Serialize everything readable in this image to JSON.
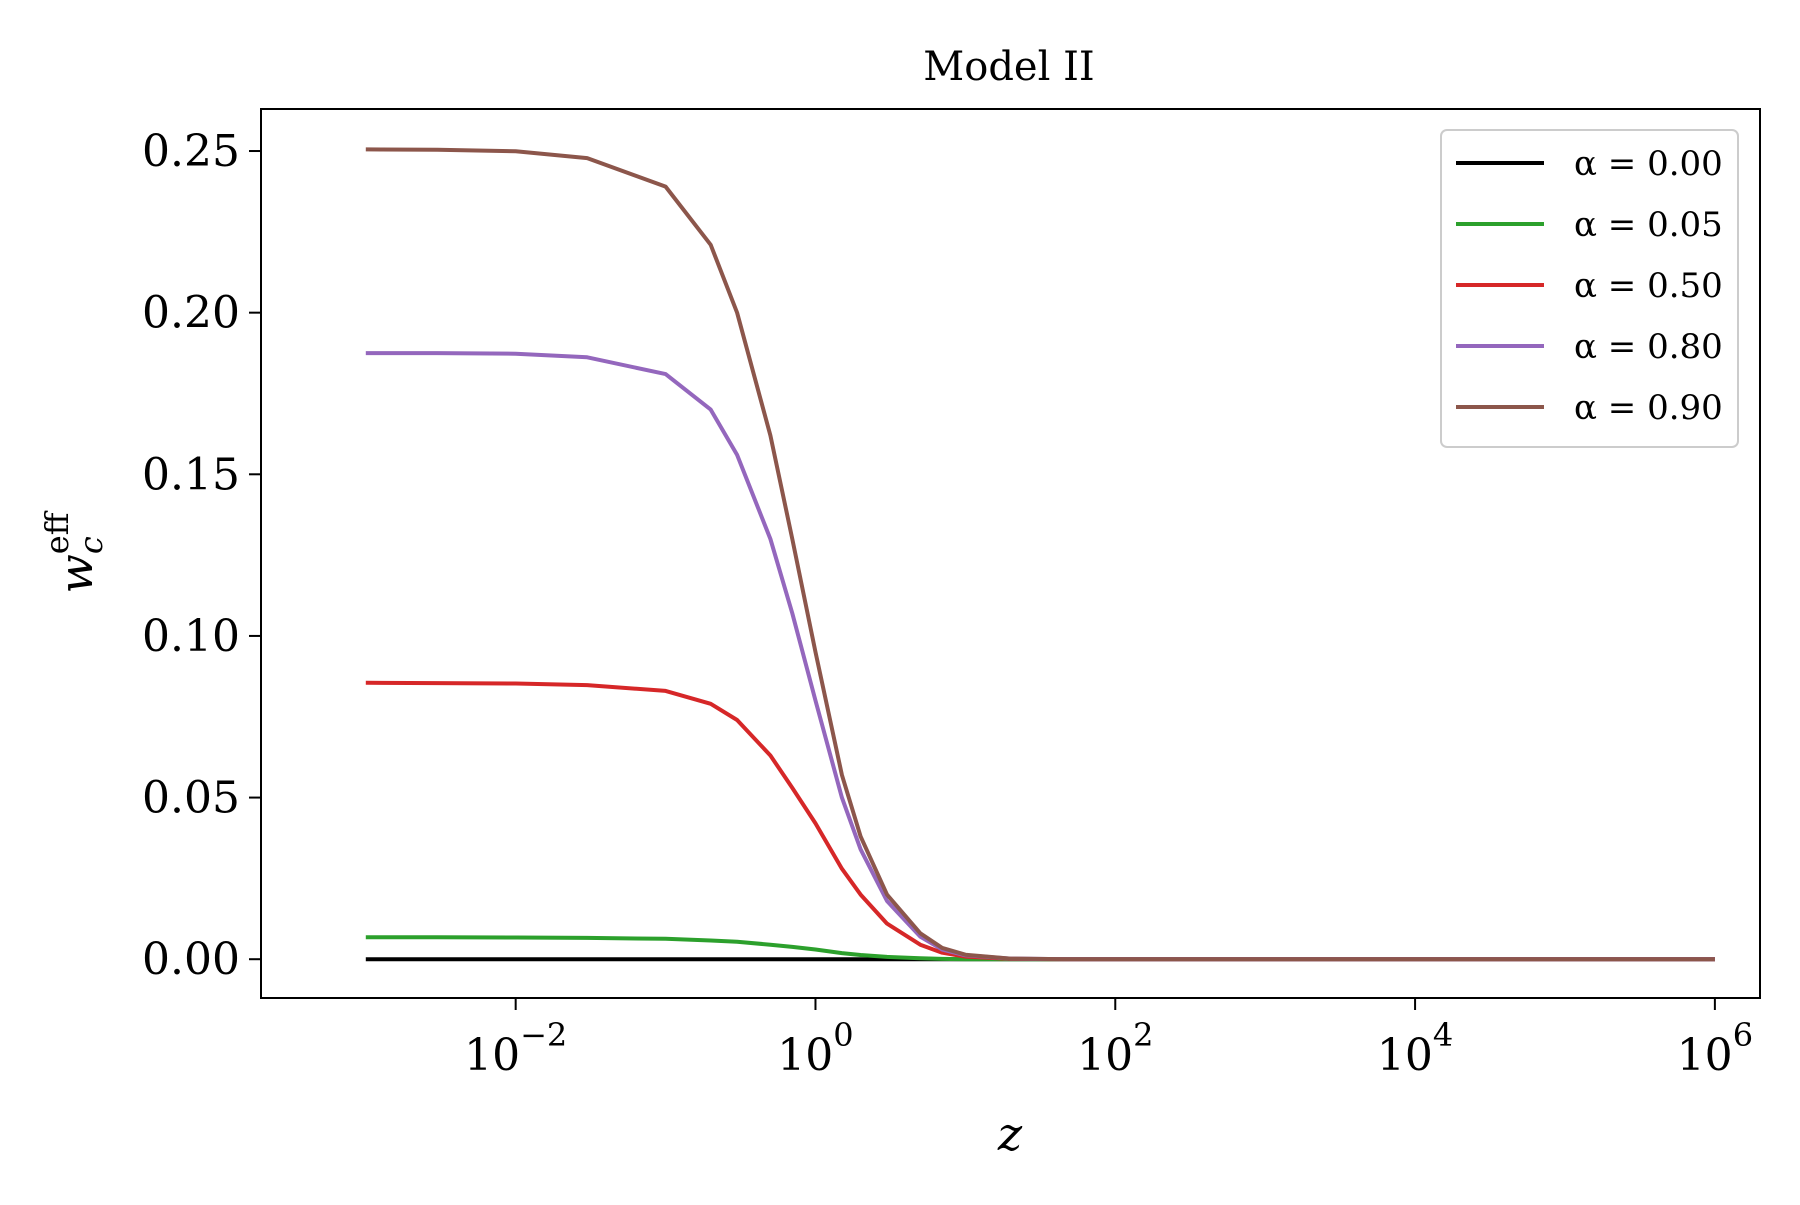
{
  "chart_data": {
    "type": "line",
    "title": "Model II",
    "xlabel": "z",
    "ylabel": {
      "base": "w",
      "sub": "c",
      "sup": "eff"
    },
    "x_scale": "log",
    "xlim": [
      0.0002,
      2000000
    ],
    "ylim": [
      -0.012,
      0.263
    ],
    "x_ticks": [
      {
        "value": 0.01,
        "base": "10",
        "exp": "−2"
      },
      {
        "value": 1,
        "base": "10",
        "exp": "0"
      },
      {
        "value": 100,
        "base": "10",
        "exp": "2"
      },
      {
        "value": 10000,
        "base": "10",
        "exp": "4"
      },
      {
        "value": 1000000,
        "base": "10",
        "exp": "6"
      }
    ],
    "y_ticks": [
      {
        "value": 0.0,
        "label": "0.00"
      },
      {
        "value": 0.05,
        "label": "0.05"
      },
      {
        "value": 0.1,
        "label": "0.10"
      },
      {
        "value": 0.15,
        "label": "0.15"
      },
      {
        "value": 0.2,
        "label": "0.20"
      },
      {
        "value": 0.25,
        "label": "0.25"
      }
    ],
    "grid": false,
    "legend_position": "top-right",
    "x": [
      0.001,
      0.003,
      0.01,
      0.03,
      0.1,
      0.2,
      0.3,
      0.5,
      0.7,
      1,
      1.5,
      2,
      3,
      5,
      7,
      10,
      20,
      50,
      100,
      1000,
      10000,
      100000,
      1000000
    ],
    "series": [
      {
        "name": "α = 0.00",
        "color": "#000000",
        "values": [
          0,
          0,
          0,
          0,
          0,
          0,
          0,
          0,
          0,
          0,
          0,
          0,
          0,
          0,
          0,
          0,
          0,
          0,
          0,
          0,
          0,
          0,
          0
        ]
      },
      {
        "name": "α = 0.05",
        "color": "#2ca02c",
        "values": [
          0.0068,
          0.0068,
          0.0067,
          0.0066,
          0.0063,
          0.0058,
          0.0054,
          0.0045,
          0.0038,
          0.003,
          0.0019,
          0.0013,
          0.0007,
          0.0003,
          0.0001,
          0,
          0,
          0,
          0,
          0,
          0,
          0,
          0
        ]
      },
      {
        "name": "α = 0.50",
        "color": "#d62728",
        "values": [
          0.0855,
          0.0854,
          0.0853,
          0.0848,
          0.083,
          0.079,
          0.074,
          0.063,
          0.053,
          0.042,
          0.028,
          0.02,
          0.011,
          0.0045,
          0.002,
          0.0008,
          0.0001,
          0,
          0,
          0,
          0,
          0,
          0
        ]
      },
      {
        "name": "α = 0.80",
        "color": "#9467bd",
        "values": [
          0.1875,
          0.1875,
          0.1873,
          0.1862,
          0.181,
          0.17,
          0.156,
          0.13,
          0.107,
          0.08,
          0.05,
          0.034,
          0.018,
          0.007,
          0.003,
          0.0012,
          0.0002,
          0,
          0,
          0,
          0,
          0,
          0
        ]
      },
      {
        "name": "α = 0.90",
        "color": "#8c564b",
        "values": [
          0.2505,
          0.2504,
          0.2499,
          0.2478,
          0.239,
          0.221,
          0.2,
          0.162,
          0.13,
          0.095,
          0.057,
          0.038,
          0.02,
          0.008,
          0.0035,
          0.0014,
          0.0002,
          0,
          0,
          0,
          0,
          0,
          0
        ]
      }
    ]
  }
}
